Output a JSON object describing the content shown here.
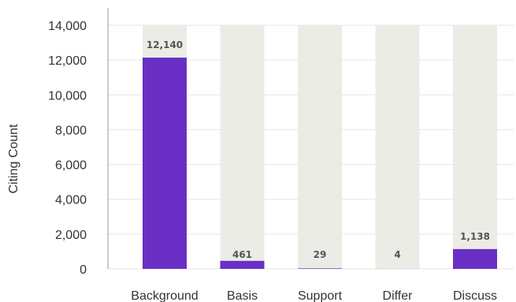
{
  "chart_data": {
    "type": "bar",
    "categories": [
      "Background",
      "Basis",
      "Support",
      "Differ",
      "Discuss"
    ],
    "values": [
      12140,
      461,
      29,
      4,
      1138
    ],
    "data_labels": [
      "12,140",
      "461",
      "29",
      "4",
      "1,138"
    ],
    "ylabel": "Citing Count",
    "xlabel": "",
    "ylim": [
      0,
      14000
    ],
    "yticks": [
      0,
      2000,
      4000,
      6000,
      8000,
      10000,
      12000,
      14000
    ],
    "ytick_labels": [
      "0",
      "2,000",
      "4,000",
      "6,000",
      "8,000",
      "10,000",
      "12,000",
      "14,000"
    ],
    "grid": true,
    "legend": "none",
    "bar_color": "#6a2fc4",
    "track_color": "#ecece6"
  }
}
